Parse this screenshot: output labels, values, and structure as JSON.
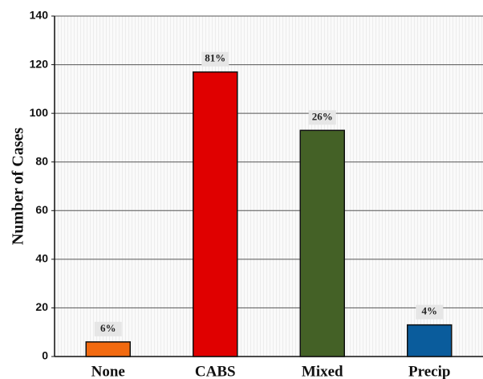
{
  "chart_data": {
    "type": "bar",
    "y_axis_label": "Number of Cases",
    "categories": [
      "None",
      "CABS",
      "Mixed",
      "Precip"
    ],
    "values": [
      6,
      117,
      93,
      13
    ],
    "colors": [
      "#f26a10",
      "#e00000",
      "#446126",
      "#0a5c9c"
    ],
    "bar_annotations": [
      "6%",
      "81%",
      "26%",
      "4%"
    ],
    "ylim": [
      0,
      140
    ],
    "yticks": [
      0,
      20,
      40,
      60,
      80,
      100,
      120,
      140
    ],
    "grid": true
  }
}
